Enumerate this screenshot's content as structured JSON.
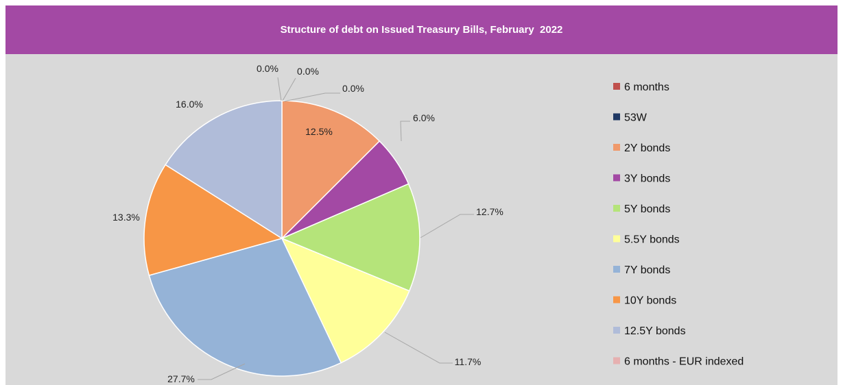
{
  "chart_data": {
    "type": "pie",
    "title": "Structure of debt on Issued Treasury Bills, February  2022",
    "categories": [
      "6 months",
      "53W",
      "2Y bonds",
      "3Y bonds",
      "5Y bonds",
      "5.5Y bonds",
      "7Y bonds",
      "10Y bonds",
      "12.5Y bonds",
      "6 months - EUR indexed"
    ],
    "values": [
      0.0,
      0.0,
      12.5,
      6.0,
      12.7,
      11.7,
      27.7,
      13.3,
      16.0,
      0.0
    ],
    "data_labels": [
      "0.0%",
      "0.0%",
      "12.5%",
      "6.0%",
      "12.7%",
      "11.7%",
      "27.7%",
      "13.3%",
      "16.0%",
      "0.0%"
    ],
    "colors": [
      "#c0504d",
      "#1f3864",
      "#f0996b",
      "#a349a4",
      "#b5e47a",
      "#ffff99",
      "#95b3d7",
      "#f79646",
      "#b0bcd9",
      "#e6b0b0"
    ],
    "legend_position": "right",
    "label_color": "#222222",
    "leader_line_color": "#a6a6a6",
    "background": "#d9d9d9",
    "title_bar_color": "#a349a4"
  }
}
